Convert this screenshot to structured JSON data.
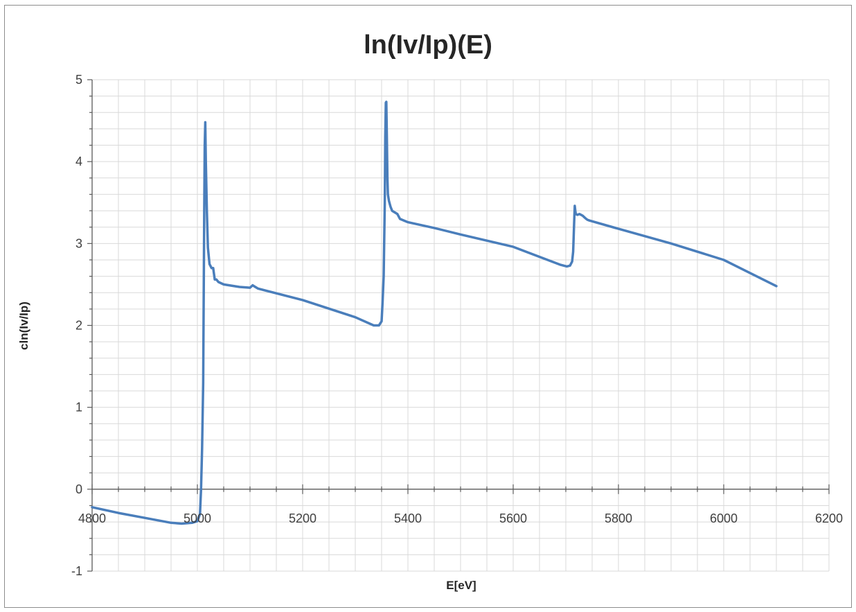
{
  "chart_data": {
    "type": "line",
    "title": "ln(Iv/Ip)(E)",
    "xlabel": "E[eV]",
    "ylabel": "cln(Iv/Ip)",
    "xlim": [
      4800,
      6200
    ],
    "ylim": [
      -1,
      5
    ],
    "x_major_step": 200,
    "x_minor_step": 50,
    "y_major_step": 1,
    "y_minor_step": 0.2,
    "x_ticks": [
      "4800",
      "5000",
      "5200",
      "5400",
      "5600",
      "5800",
      "6000",
      "6200"
    ],
    "y_ticks": [
      "-1",
      "0",
      "1",
      "2",
      "3",
      "4",
      "5"
    ],
    "grid": "major and minor",
    "legend": "none",
    "series_color": "#4a7ebb",
    "gridline_color": "#d9d9d9",
    "series": [
      {
        "x": [
          4800,
          4850,
          4900,
          4950,
          4970,
          4990,
          5000,
          5005,
          5007,
          5009,
          5011,
          5012,
          5013,
          5014,
          5015,
          5016,
          5018,
          5020,
          5023,
          5027,
          5030,
          5033,
          5036,
          5040,
          5050,
          5080,
          5100,
          5105,
          5110,
          5115,
          5200,
          5300,
          5335,
          5345,
          5350,
          5352,
          5354,
          5356,
          5357,
          5358,
          5359,
          5360,
          5361,
          5362,
          5364,
          5367,
          5370,
          5380,
          5385,
          5400,
          5450,
          5500,
          5600,
          5690,
          5702,
          5708,
          5712,
          5714,
          5715,
          5716,
          5717,
          5718,
          5719,
          5722,
          5726,
          5732,
          5737,
          5741,
          5745,
          5800,
          5900,
          6000,
          6100
        ],
        "y": [
          -0.22,
          -0.29,
          -0.35,
          -0.41,
          -0.42,
          -0.41,
          -0.39,
          -0.3,
          0.0,
          0.5,
          1.3,
          2.3,
          3.4,
          4.2,
          4.48,
          4.0,
          3.4,
          2.95,
          2.75,
          2.7,
          2.7,
          2.56,
          2.56,
          2.53,
          2.5,
          2.47,
          2.46,
          2.49,
          2.47,
          2.45,
          2.31,
          2.1,
          2.0,
          2.0,
          2.05,
          2.3,
          2.6,
          3.5,
          4.3,
          4.72,
          4.73,
          4.3,
          3.8,
          3.6,
          3.52,
          3.45,
          3.4,
          3.36,
          3.3,
          3.26,
          3.19,
          3.11,
          2.96,
          2.74,
          2.72,
          2.73,
          2.78,
          2.9,
          3.1,
          3.3,
          3.46,
          3.4,
          3.36,
          3.35,
          3.36,
          3.34,
          3.31,
          3.29,
          3.28,
          3.18,
          3.0,
          2.8,
          2.48
        ]
      }
    ]
  }
}
